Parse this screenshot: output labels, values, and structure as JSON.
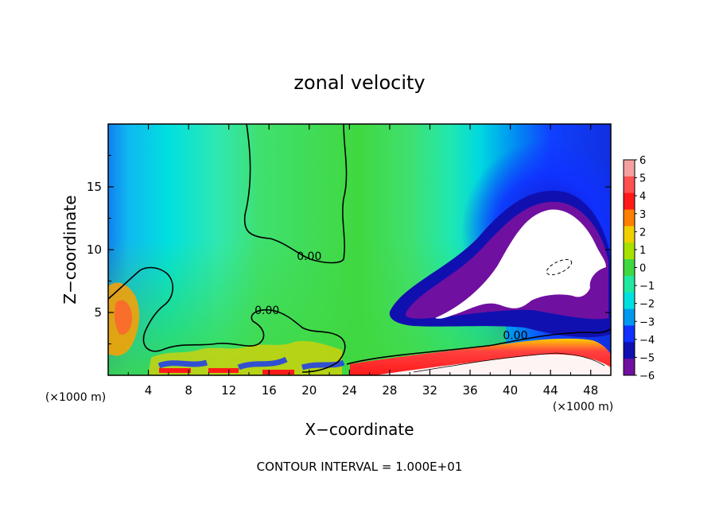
{
  "chart_data": {
    "type": "heatmap",
    "title": "zonal velocity",
    "xlabel": "X−coordinate",
    "ylabel": "Z−coordinate",
    "x_unit": "(×1000 m)",
    "y_unit": "(×1000 m)",
    "xlim": [
      0,
      50
    ],
    "ylim": [
      0,
      20
    ],
    "x_ticks": [
      4,
      8,
      12,
      16,
      20,
      24,
      28,
      32,
      36,
      40,
      44,
      48
    ],
    "x_tick_labels": [
      "4",
      "8",
      "12",
      "16",
      "20",
      "24",
      "28",
      "32",
      "36",
      "40",
      "44",
      "48"
    ],
    "y_ticks": [
      5,
      10,
      15
    ],
    "y_tick_labels": [
      "5",
      "10",
      "15"
    ],
    "colorbar": {
      "levels": [
        6,
        5,
        4,
        3,
        2,
        1,
        0,
        -1,
        -2,
        -3,
        -4,
        -5,
        -6
      ],
      "labels": [
        "6",
        "5",
        "4",
        "3",
        "2",
        "1",
        "0",
        "−1",
        "−2",
        "−3",
        "−4",
        "−5",
        "−6"
      ],
      "colors": [
        "#f4a0a0",
        "#ff5050",
        "#ff1a1a",
        "#ff8000",
        "#f0d000",
        "#a8e000",
        "#40d840",
        "#20e8a0",
        "#00e0e0",
        "#0098f0",
        "#1030ff",
        "#1010b0",
        "#7010a0"
      ]
    },
    "contour_labels": [
      {
        "text": "0.00",
        "x": 20,
        "y": 9.5
      },
      {
        "text": "0.00",
        "x": 15.8,
        "y": 5.2
      },
      {
        "text": "0.00",
        "x": 40.5,
        "y": 3.2
      }
    ],
    "contour_interval_note": "CONTOUR INTERVAL = 1.000E+01",
    "regions": [
      {
        "name": "upper-central-zero",
        "value": 0.3
      },
      {
        "name": "left-upper-cyan",
        "value": -2.0
      },
      {
        "name": "right-upper-blue",
        "value": -4.0
      },
      {
        "name": "right-core-white",
        "value": -8.0
      },
      {
        "name": "surface-jet",
        "value": 5.0
      },
      {
        "name": "left-lower-turbulent",
        "value": 2.5
      }
    ]
  }
}
